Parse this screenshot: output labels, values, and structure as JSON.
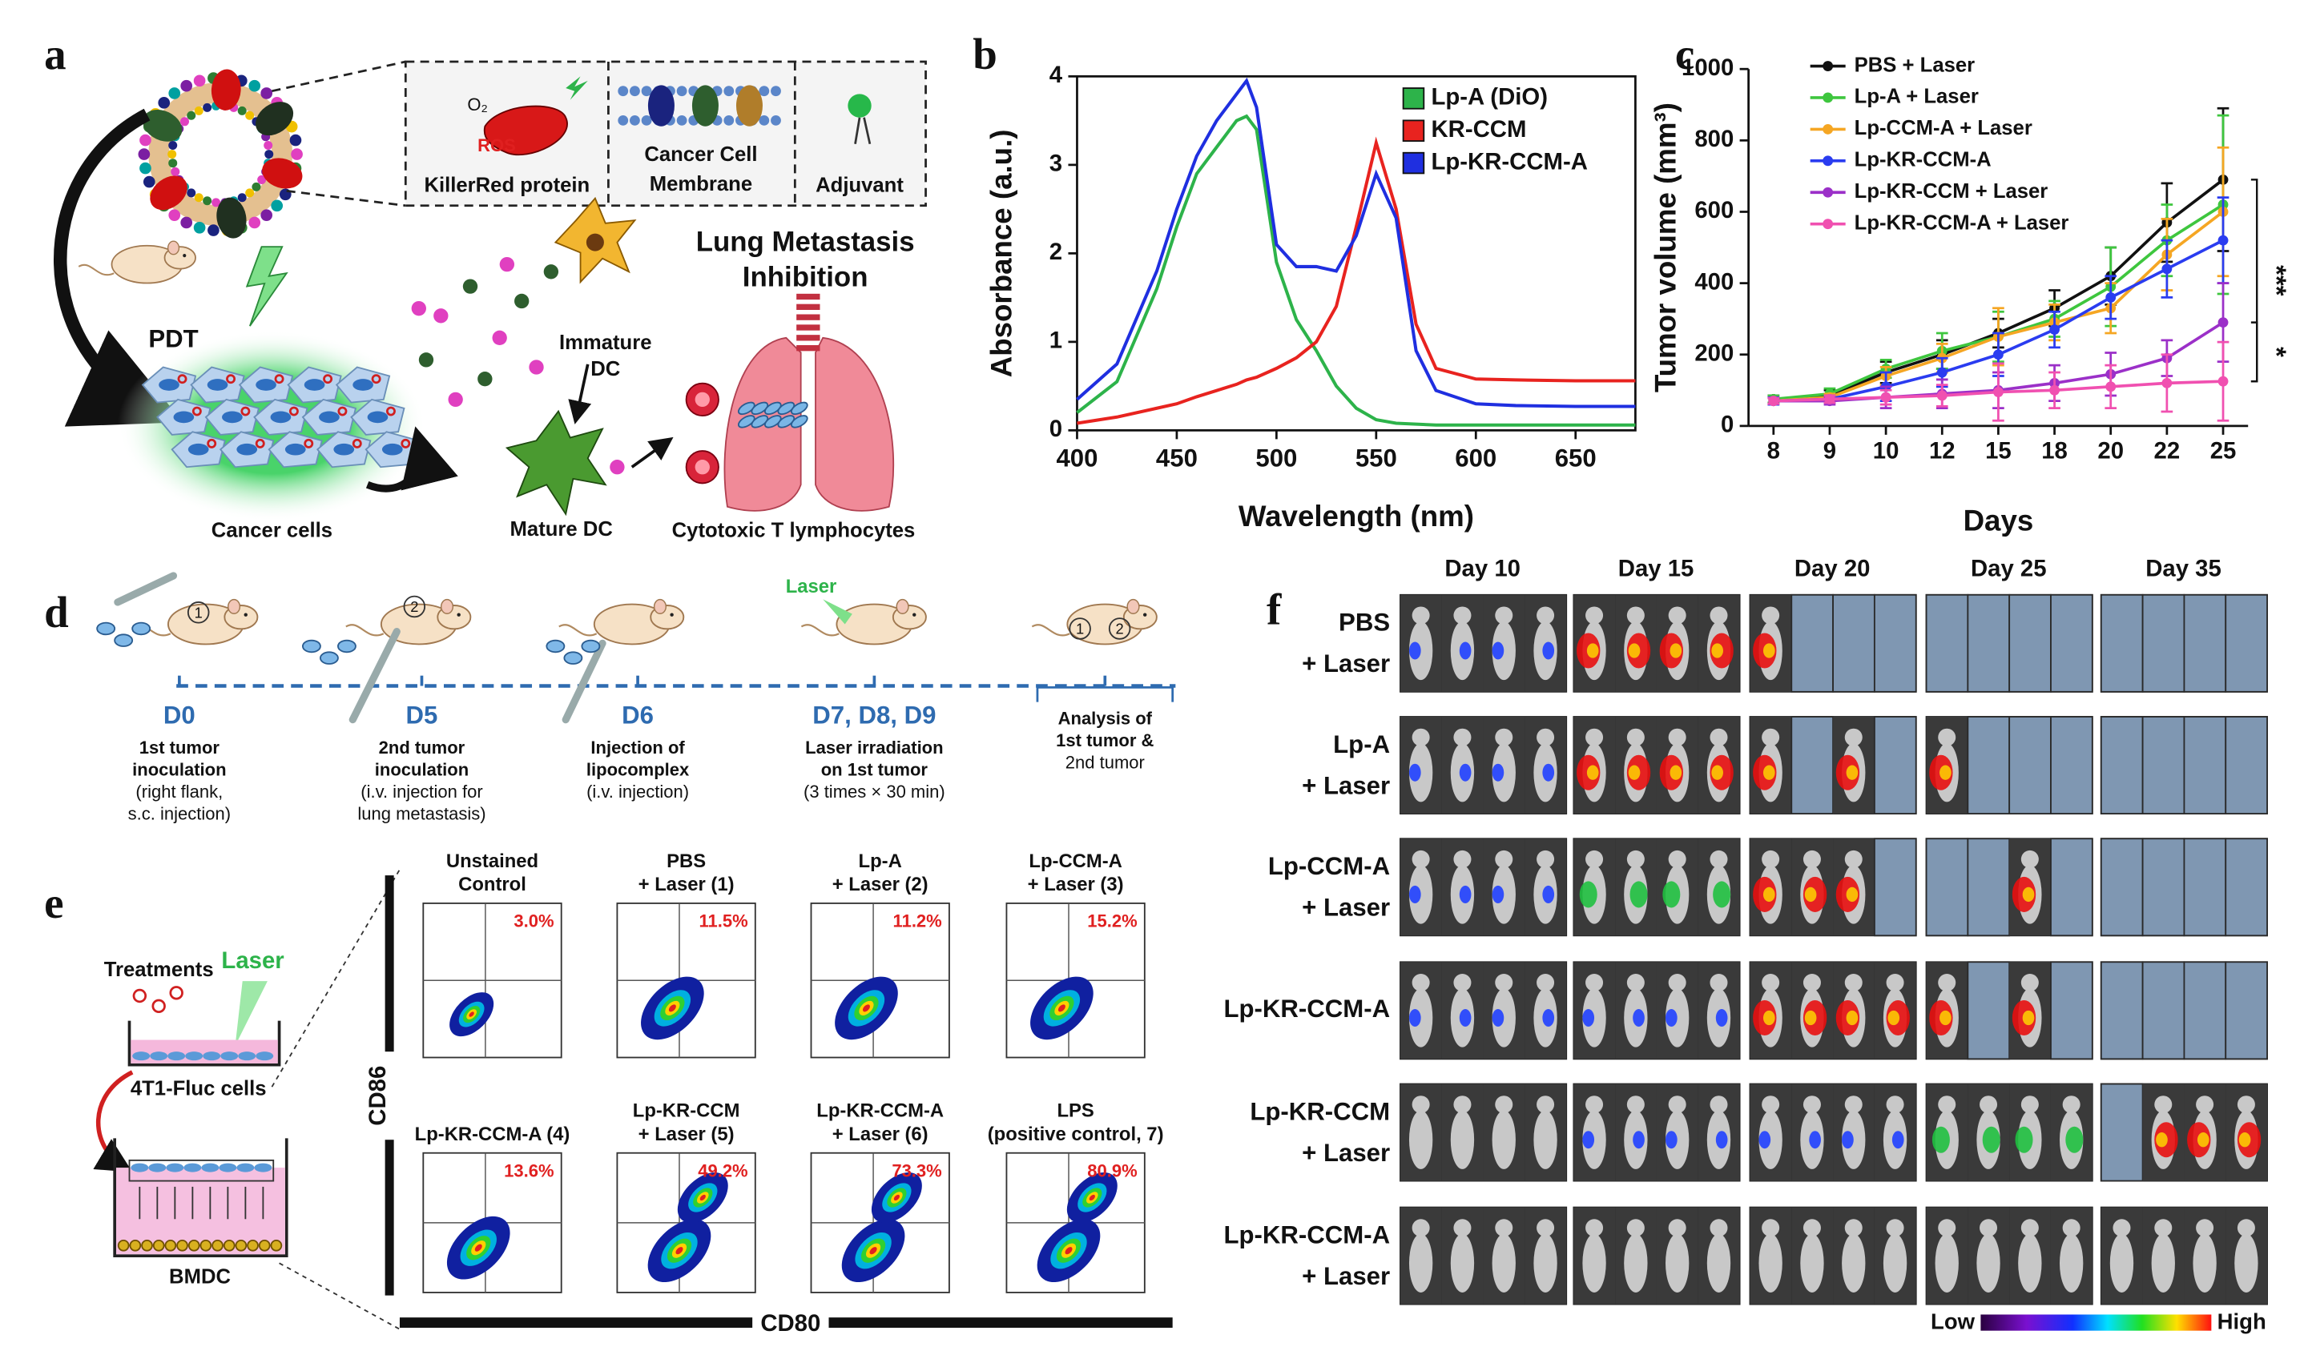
{
  "panel_a": {
    "label": "a",
    "o2": "O₂",
    "ros": "ROS",
    "killerred": "KillerRed protein",
    "membrane": [
      "Cancer Cell",
      "Membrane"
    ],
    "adjuvant": "Adjuvant",
    "pdt": "PDT",
    "lung": [
      "Lung Metastasis",
      "Inhibition"
    ],
    "immature": [
      "Immature",
      "DC"
    ],
    "mature": "Mature DC",
    "cancer": "Cancer cells",
    "ctl": "Cytotoxic T lymphocytes"
  },
  "chart_data": [
    {
      "type": "line",
      "panel_label": "b",
      "x": [
        400,
        420,
        440,
        450,
        460,
        470,
        480,
        485,
        490,
        500,
        510,
        520,
        530,
        540,
        550,
        560,
        570,
        580,
        600,
        620,
        650,
        680
      ],
      "xlim": [
        400,
        680
      ],
      "xticks": [
        400,
        450,
        500,
        550,
        600,
        650
      ],
      "ylim": [
        0,
        4
      ],
      "yticks": [
        0,
        1,
        2,
        3,
        4
      ],
      "x_label": "Wavelength (nm)",
      "y_label": "Absorbance (a.u.)",
      "legend": "upper right",
      "frame": true,
      "series": [
        {
          "name": "Lp-A (DiO)",
          "color": "#2db34a",
          "values": [
            0.2,
            0.55,
            1.6,
            2.3,
            2.9,
            3.2,
            3.5,
            3.55,
            3.4,
            1.9,
            1.25,
            0.9,
            0.5,
            0.25,
            0.12,
            0.08,
            0.07,
            0.06,
            0.06,
            0.06,
            0.06,
            0.06
          ]
        },
        {
          "name": "KR-CCM",
          "color": "#e8231f",
          "values": [
            0.08,
            0.15,
            0.25,
            0.3,
            0.38,
            0.45,
            0.52,
            0.57,
            0.6,
            0.7,
            0.82,
            1.0,
            1.4,
            2.3,
            3.25,
            2.5,
            1.2,
            0.7,
            0.58,
            0.57,
            0.56,
            0.56
          ]
        },
        {
          "name": "Lp-KR-CCM-A",
          "color": "#1f2fe0",
          "values": [
            0.35,
            0.75,
            1.8,
            2.5,
            3.1,
            3.5,
            3.8,
            3.95,
            3.65,
            2.1,
            1.85,
            1.85,
            1.8,
            2.2,
            2.9,
            2.4,
            0.9,
            0.45,
            0.3,
            0.28,
            0.27,
            0.27
          ]
        }
      ]
    },
    {
      "type": "line",
      "panel_label": "c",
      "categories": [
        "8",
        "9",
        "10",
        "12",
        "15",
        "18",
        "20",
        "22",
        "25"
      ],
      "ylim": [
        0,
        1000
      ],
      "yticks": [
        0,
        200,
        400,
        600,
        800,
        1000
      ],
      "x_label": "Days",
      "y_label": "Tumor volume (mm³)",
      "legend": "upper left",
      "frame": false,
      "markers": true,
      "annotations": [
        "***",
        "*"
      ],
      "series": [
        {
          "name": "PBS + Laser",
          "color": "#111111",
          "values": [
            75,
            85,
            150,
            200,
            260,
            330,
            420,
            570,
            690
          ],
          "errors": [
            10,
            15,
            30,
            40,
            40,
            50,
            80,
            110,
            200
          ]
        },
        {
          "name": "Lp-A + Laser",
          "color": "#3ec63e",
          "values": [
            75,
            90,
            160,
            210,
            250,
            300,
            390,
            520,
            620
          ],
          "errors": [
            10,
            15,
            25,
            50,
            70,
            50,
            110,
            100,
            250
          ]
        },
        {
          "name": "Lp-CCM-A + Laser",
          "color": "#f5a623",
          "values": [
            70,
            80,
            140,
            190,
            250,
            290,
            330,
            480,
            600
          ],
          "errors": [
            10,
            10,
            25,
            40,
            80,
            50,
            70,
            100,
            180
          ]
        },
        {
          "name": "Lp-KR-CCM-A",
          "color": "#2a3cf0",
          "values": [
            70,
            75,
            110,
            150,
            200,
            270,
            360,
            440,
            520
          ],
          "errors": [
            10,
            10,
            40,
            40,
            60,
            50,
            60,
            80,
            120
          ]
        },
        {
          "name": "Lp-KR-CCM + Laser",
          "color": "#9b30c8",
          "values": [
            70,
            70,
            80,
            90,
            100,
            120,
            145,
            190,
            290
          ],
          "errors": [
            8,
            10,
            30,
            40,
            50,
            50,
            60,
            50,
            110
          ]
        },
        {
          "name": "Lp-KR-CCM-A + Laser",
          "color": "#f050b0",
          "values": [
            70,
            75,
            80,
            85,
            95,
            100,
            110,
            120,
            125
          ],
          "errors": [
            8,
            10,
            20,
            30,
            80,
            50,
            60,
            80,
            110
          ]
        }
      ]
    }
  ],
  "panel_d": {
    "label": "d",
    "laser": "Laser",
    "sites": [
      "1",
      "2"
    ],
    "steps": [
      {
        "day": "D0",
        "lines": [
          "1st tumor",
          "inoculation",
          "(right flank,",
          "s.c. injection)"
        ]
      },
      {
        "day": "D5",
        "lines": [
          "2nd tumor",
          "inoculation",
          "(i.v. injection for",
          "lung metastasis)"
        ]
      },
      {
        "day": "D6",
        "lines": [
          "Injection of",
          "lipocomplex",
          "(i.v. injection)"
        ]
      },
      {
        "day": "D7, D8, D9",
        "lines": [
          "Laser irradiation",
          "on 1st tumor",
          "(3 times × 30 min)"
        ]
      },
      {
        "lines": [
          "Analysis of",
          "1st tumor &",
          "2nd tumor"
        ]
      }
    ]
  },
  "panel_e": {
    "label": "e",
    "treatments": "Treatments",
    "laser": "Laser",
    "cells": "4T1-Fluc cells",
    "bmdc": "BMDC",
    "y_axis": "CD86",
    "x_axis": "CD80",
    "plots": [
      {
        "title": [
          "Unstained",
          "Control"
        ],
        "percent": "3.0%"
      },
      {
        "title": [
          "PBS",
          "+ Laser (1)"
        ],
        "percent": "11.5%"
      },
      {
        "title": [
          "Lp-A",
          "+ Laser (2)"
        ],
        "percent": "11.2%"
      },
      {
        "title": [
          "Lp-CCM-A",
          "+ Laser (3)"
        ],
        "percent": "15.2%"
      },
      {
        "title": [
          "Lp-KR-CCM-A (4)"
        ],
        "percent": "13.6%"
      },
      {
        "title": [
          "Lp-KR-CCM",
          "+ Laser (5)"
        ],
        "percent": "49.2%"
      },
      {
        "title": [
          "Lp-KR-CCM-A",
          "+ Laser (6)"
        ],
        "percent": "73.3%"
      },
      {
        "title": [
          "LPS",
          "(positive control, 7)"
        ],
        "percent": "80.9%"
      }
    ]
  },
  "panel_f": {
    "label": "f",
    "days": [
      "Day 10",
      "Day 15",
      "Day 20",
      "Day 25",
      "Day 35"
    ],
    "rows": [
      [
        "PBS",
        "+ Laser"
      ],
      [
        "Lp-A",
        "+ Laser"
      ],
      [
        "Lp-CCM-A",
        "+ Laser"
      ],
      [
        "Lp-KR-CCM-A"
      ],
      [
        "Lp-KR-CCM",
        "+ Laser"
      ],
      [
        "Lp-KR-CCM-A",
        "+ Laser"
      ]
    ],
    "scale": [
      "Low",
      "High"
    ]
  }
}
